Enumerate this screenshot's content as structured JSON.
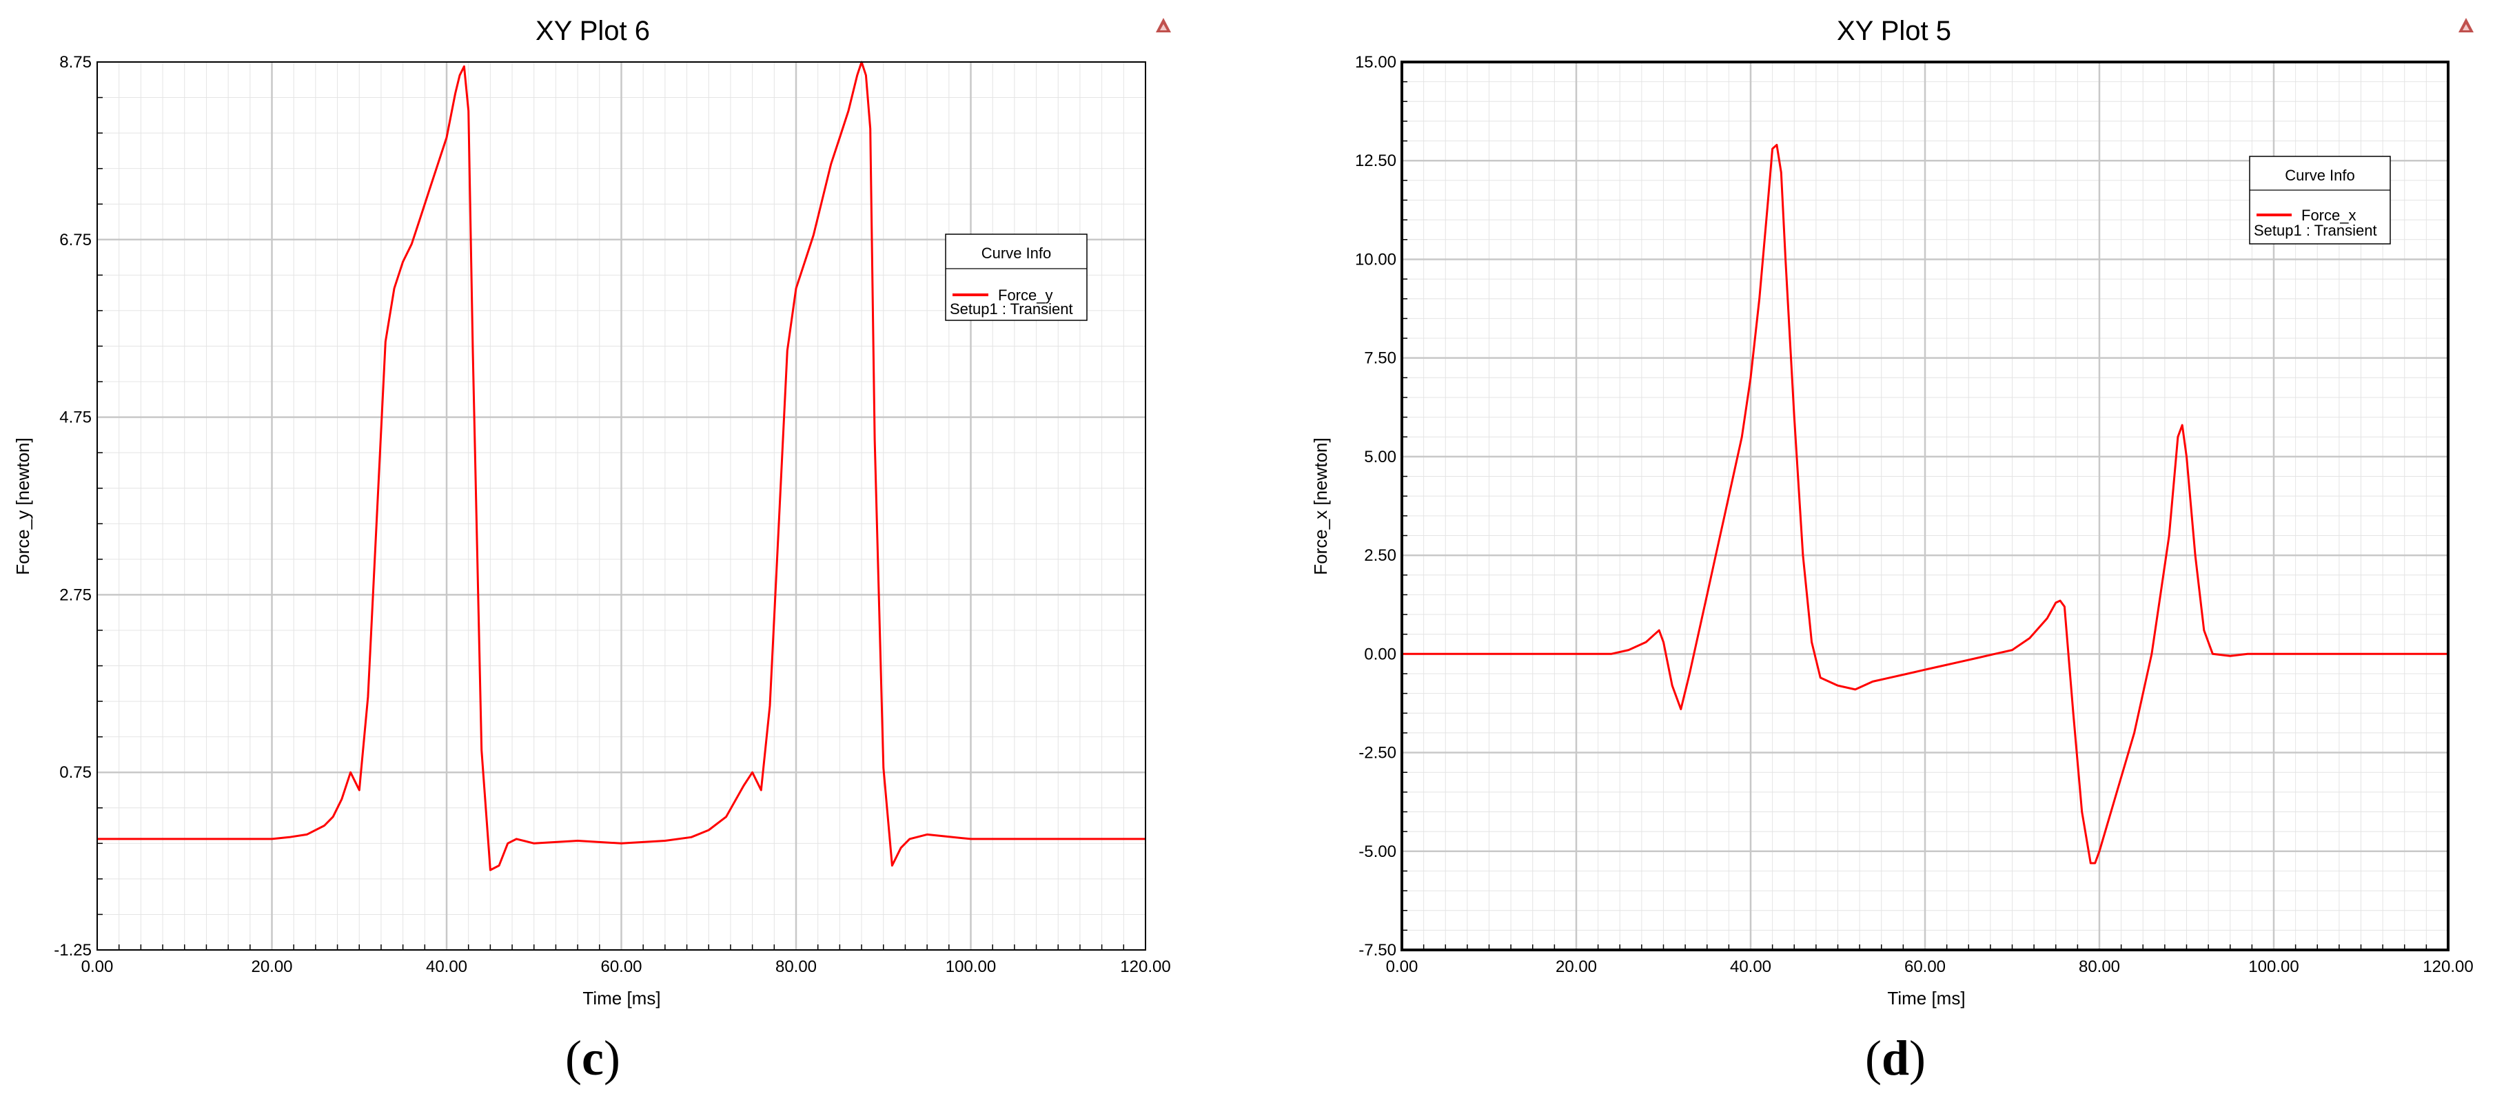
{
  "colors": {
    "curve": "#ff0000",
    "major_grid": "#c8c8c8",
    "minor_grid": "#e4e4e4",
    "marker": "#c0504d"
  },
  "captions": [
    "c",
    "d"
  ],
  "chart_data": [
    {
      "type": "line",
      "title": "XY Plot 6",
      "xlabel": "Time [ms]",
      "ylabel": "Force_y [newton]",
      "xlim": [
        0,
        120
      ],
      "ylim": [
        -1.25,
        8.75
      ],
      "xticks": [
        "0.00",
        "20.00",
        "40.00",
        "60.00",
        "80.00",
        "100.00",
        "120.00"
      ],
      "yticks": [
        "-1.25",
        "0.75",
        "2.75",
        "4.75",
        "6.75",
        "8.75"
      ],
      "grid": true,
      "legend": {
        "position": "right",
        "header": "Curve Info",
        "entries": [
          {
            "name": "Force_y",
            "detail": "Setup1 : Transient"
          }
        ]
      },
      "series": [
        {
          "name": "Force_y",
          "x": [
            0,
            20,
            22,
            24,
            26,
            27,
            28,
            29,
            30,
            31,
            32,
            33,
            34,
            35,
            36,
            37,
            38,
            39,
            40,
            41,
            41.5,
            42,
            42.5,
            43,
            44,
            45,
            46,
            47,
            48,
            50,
            55,
            60,
            65,
            68,
            70,
            72,
            74,
            75,
            76,
            77,
            78,
            79,
            80,
            81,
            82,
            83,
            84,
            85,
            86,
            87,
            87.5,
            88,
            88.5,
            89,
            90,
            91,
            92,
            93,
            95,
            97,
            100,
            110,
            120
          ],
          "y": [
            0,
            0,
            0.02,
            0.05,
            0.15,
            0.25,
            0.45,
            0.75,
            0.55,
            1.6,
            3.6,
            5.6,
            6.2,
            6.5,
            6.7,
            7.0,
            7.3,
            7.6,
            7.9,
            8.4,
            8.6,
            8.7,
            8.2,
            5.5,
            1.0,
            -0.35,
            -0.3,
            -0.05,
            0.0,
            -0.05,
            -0.02,
            -0.05,
            -0.02,
            0.02,
            0.1,
            0.25,
            0.6,
            0.75,
            0.55,
            1.5,
            3.5,
            5.5,
            6.2,
            6.5,
            6.8,
            7.2,
            7.6,
            7.9,
            8.2,
            8.6,
            8.75,
            8.6,
            8.0,
            4.5,
            0.8,
            -0.3,
            -0.1,
            0.0,
            0.05,
            0.03,
            0.0,
            0.0,
            0.0
          ]
        }
      ]
    },
    {
      "type": "line",
      "title": "XY Plot 5",
      "xlabel": "Time [ms]",
      "ylabel": "Force_x [newton]",
      "xlim": [
        0,
        120
      ],
      "ylim": [
        -7.5,
        15
      ],
      "xticks": [
        "0.00",
        "20.00",
        "40.00",
        "60.00",
        "80.00",
        "100.00",
        "120.00"
      ],
      "yticks": [
        "-7.50",
        "-5.00",
        "-2.50",
        "0.00",
        "2.50",
        "5.00",
        "7.50",
        "10.00",
        "12.50",
        "15.00"
      ],
      "grid": true,
      "legend": {
        "position": "top-right",
        "header": "Curve Info",
        "entries": [
          {
            "name": "Force_x",
            "detail": "Setup1 : Transient"
          }
        ]
      },
      "series": [
        {
          "name": "Force_x",
          "x": [
            0,
            24,
            26,
            28,
            29,
            29.5,
            30,
            31,
            32,
            33,
            34,
            35,
            36,
            37,
            38,
            39,
            40,
            41,
            42,
            42.5,
            43,
            43.5,
            44,
            45,
            46,
            47,
            48,
            50,
            52,
            54,
            56,
            58,
            60,
            62,
            64,
            66,
            68,
            70,
            72,
            74,
            75,
            75.5,
            76,
            77,
            78,
            79,
            79.5,
            80,
            82,
            84,
            86,
            87,
            88,
            89,
            89.5,
            90,
            91,
            92,
            93,
            95,
            97,
            100,
            110,
            120
          ],
          "y": [
            0,
            0,
            0.1,
            0.3,
            0.5,
            0.6,
            0.3,
            -0.8,
            -1.4,
            -0.5,
            0.5,
            1.5,
            2.5,
            3.5,
            4.5,
            5.5,
            7.0,
            9.0,
            11.5,
            12.8,
            12.9,
            12.2,
            10.0,
            6.0,
            2.5,
            0.3,
            -0.6,
            -0.8,
            -0.9,
            -0.7,
            -0.6,
            -0.5,
            -0.4,
            -0.3,
            -0.2,
            -0.1,
            0.0,
            0.1,
            0.4,
            0.9,
            1.3,
            1.35,
            1.2,
            -1.5,
            -4.0,
            -5.3,
            -5.3,
            -5.0,
            -3.5,
            -2.0,
            0.0,
            1.5,
            3.0,
            5.5,
            5.8,
            5.0,
            2.5,
            0.6,
            0.0,
            -0.05,
            0.0,
            0.0,
            0.0,
            0.0
          ]
        }
      ]
    }
  ]
}
